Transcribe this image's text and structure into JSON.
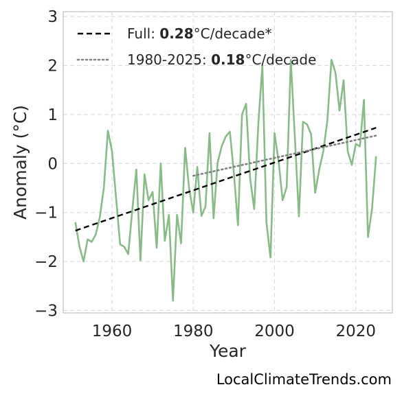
{
  "chart_data": {
    "type": "line",
    "xlabel": "Year",
    "ylabel": "Anomaly (°C)",
    "xlim": [
      1948,
      2029
    ],
    "ylim": [
      -3.05,
      3.1
    ],
    "xticks": [
      1960,
      1980,
      2000,
      2020
    ],
    "yticks": [
      -3,
      -2,
      -1,
      0,
      1,
      2,
      3
    ],
    "grid": true,
    "legend_position": "top-left",
    "colors": {
      "series": "#88bb88",
      "trend_full": "#000000",
      "trend_recent": "#808080",
      "grid": "#dddddd",
      "frame": "#cccccc"
    },
    "series": [
      {
        "x": [
          1951,
          1952,
          1953,
          1954,
          1955,
          1956,
          1957,
          1958,
          1959,
          1960,
          1961,
          1962,
          1963,
          1964,
          1965,
          1966,
          1967,
          1968,
          1969,
          1970,
          1971,
          1972,
          1973,
          1974,
          1975,
          1976,
          1977,
          1978,
          1979,
          1980,
          1981,
          1982,
          1983,
          1984,
          1985,
          1986,
          1987,
          1988,
          1989,
          1990,
          1991,
          1992,
          1993,
          1994,
          1995,
          1996,
          1997,
          1998,
          1999,
          2000,
          2001,
          2002,
          2003,
          2004,
          2005,
          2006,
          2007,
          2008,
          2009,
          2010,
          2011,
          2012,
          2013,
          2014,
          2015,
          2016,
          2017,
          2018,
          2019,
          2020,
          2021,
          2022,
          2023,
          2024,
          2025
        ],
        "y": [
          -1.2,
          -1.7,
          -2.0,
          -1.55,
          -1.6,
          -1.45,
          -1.1,
          -0.5,
          0.67,
          0.25,
          -0.7,
          -1.65,
          -1.7,
          -1.85,
          -0.95,
          -0.12,
          -1.98,
          -0.22,
          -0.75,
          -0.58,
          -1.72,
          0.0,
          -1.58,
          -1.05,
          -2.8,
          -1.05,
          -1.63,
          0.32,
          -0.52,
          -1.0,
          -0.07,
          -1.07,
          -0.88,
          0.62,
          -1.12,
          0.02,
          0.35,
          0.55,
          0.65,
          -0.2,
          -1.26,
          1.0,
          1.22,
          -0.3,
          -0.93,
          0.8,
          2.0,
          -1.2,
          -1.92,
          0.62,
          0.05,
          -0.75,
          -0.48,
          2.12,
          0.53,
          -1.08,
          0.85,
          0.8,
          0.6,
          -0.6,
          -0.12,
          0.25,
          0.88,
          2.12,
          1.85,
          1.08,
          1.7,
          0.25,
          -0.03,
          0.4,
          0.35,
          1.3,
          -1.5,
          -0.92,
          0.15
        ]
      }
    ],
    "trends": [
      {
        "label_prefix": "Full: ",
        "label_value": "0.28",
        "label_suffix": "°C/decade*",
        "style": "dashed",
        "x": [
          1951,
          2025
        ],
        "y": [
          -1.37,
          0.73
        ]
      },
      {
        "label_prefix": "1980-2025: ",
        "label_value": "0.18",
        "label_suffix": "°C/decade",
        "style": "dotted",
        "x": [
          1980,
          2025
        ],
        "y": [
          -0.25,
          0.57
        ]
      }
    ]
  },
  "watermark": "LocalClimateTrends.com"
}
